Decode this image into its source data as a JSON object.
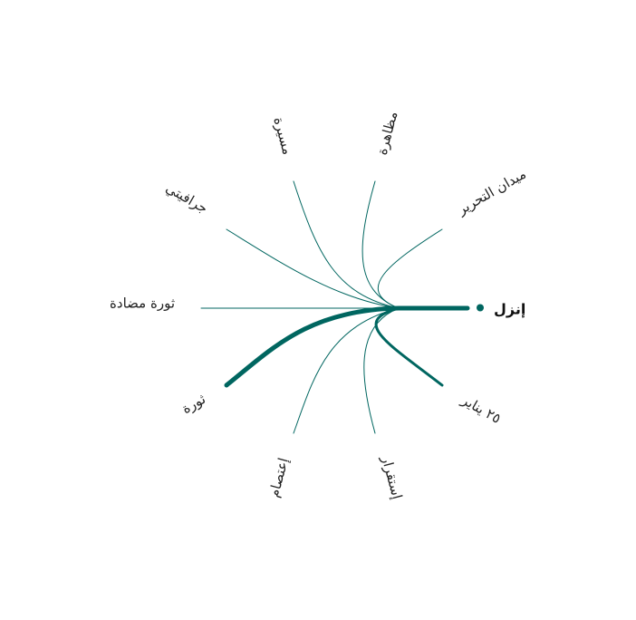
{
  "colors": {
    "accent": "#006660",
    "text": "#222222",
    "background": "#ffffff"
  },
  "center": {
    "label": "إنزل"
  },
  "chart_data": {
    "type": "network",
    "center": "إنزل",
    "links": [
      {
        "label": "ميدان التحرير",
        "weight": 1
      },
      {
        "label": "مظاهرة",
        "weight": 1
      },
      {
        "label": "مسيرة",
        "weight": 1
      },
      {
        "label": "جرافيتي",
        "weight": 1
      },
      {
        "label": "ثورة مضادة",
        "weight": 1
      },
      {
        "label": "ثورة",
        "weight": 5
      },
      {
        "label": "إعتصام",
        "weight": 1
      },
      {
        "label": "إستقرار",
        "weight": 1
      },
      {
        "label": "٢٥ يناير",
        "weight": 3
      }
    ]
  }
}
